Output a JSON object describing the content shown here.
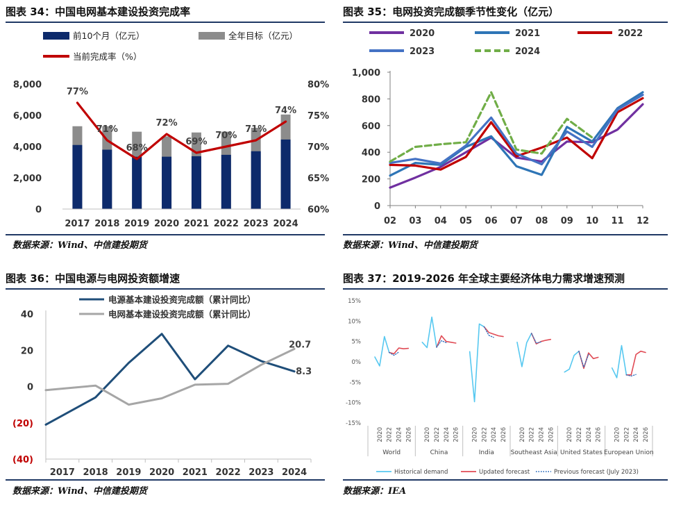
{
  "panels": {
    "p34": {
      "title": "图表 34：中国电网基本建设投资完成率",
      "source": "数据来源：Wind、中信建投期货"
    },
    "p35": {
      "title": "图表 35：电网投资完成额季节性变化（亿元）",
      "source": "数据来源：Wind、中信建投期货"
    },
    "p36": {
      "title": "图表 36：中国电源与电网投资额增速",
      "source": "数据来源：Wind、中信建投期货"
    },
    "p37": {
      "title": "图表 37：2019-2026 年全球主要经济体电力需求增速预测",
      "source": "数据来源：IEA"
    }
  },
  "chart_data": [
    {
      "id": "chart34",
      "type": "bar",
      "categories": [
        "2017",
        "2018",
        "2019",
        "2020",
        "2021",
        "2022",
        "2023",
        "2024"
      ],
      "series": [
        {
          "name": "前10个月（亿元）",
          "kind": "bar",
          "color": "#0d2a6b",
          "values": [
            4100,
            3800,
            3350,
            3350,
            3380,
            3470,
            3700,
            4450
          ]
        },
        {
          "name": "全年目标（亿元）",
          "kind": "bar",
          "color": "#8c8c8c",
          "values": [
            5300,
            5300,
            4950,
            4650,
            4900,
            4950,
            5200,
            6050
          ]
        },
        {
          "name": "当前完成率（%）",
          "kind": "line",
          "axis": "right",
          "color": "#c00000",
          "values": [
            77,
            71,
            68,
            72,
            69,
            70,
            71,
            74
          ]
        }
      ],
      "rate_labels": [
        "77%",
        "71%",
        "68%",
        "72%",
        "69%",
        "70%",
        "71%",
        "74%"
      ],
      "ylim": [
        0,
        8000
      ],
      "yticks": [
        "0",
        "2,000",
        "4,000",
        "6,000",
        "8,000"
      ],
      "y2lim": [
        60,
        80
      ],
      "y2ticks": [
        "60%",
        "65%",
        "70%",
        "75%",
        "80%"
      ],
      "legend": "top-left"
    },
    {
      "id": "chart35",
      "type": "line",
      "x": [
        "02",
        "03",
        "04",
        "05",
        "06",
        "07",
        "08",
        "09",
        "10",
        "11",
        "12"
      ],
      "series": [
        {
          "name": "2020",
          "color": "#7030a0",
          "dashed": false,
          "values": [
            135,
            210,
            290,
            400,
            510,
            360,
            330,
            480,
            475,
            570,
            760
          ]
        },
        {
          "name": "2021",
          "color": "#2e75b6",
          "dashed": false,
          "values": [
            225,
            320,
            305,
            440,
            520,
            295,
            230,
            590,
            480,
            730,
            850
          ]
        },
        {
          "name": "2022",
          "color": "#c00000",
          "dashed": false,
          "values": [
            305,
            300,
            270,
            365,
            625,
            370,
            435,
            510,
            355,
            700,
            805
          ]
        },
        {
          "name": "2023",
          "color": "#4472c4",
          "dashed": false,
          "values": [
            320,
            350,
            315,
            450,
            660,
            390,
            310,
            555,
            440,
            720,
            830
          ]
        },
        {
          "name": "2024",
          "color": "#70ad47",
          "dashed": true,
          "values": [
            330,
            440,
            460,
            475,
            850,
            420,
            390,
            650,
            510,
            null,
            null
          ]
        }
      ],
      "ylim": [
        0,
        1000
      ],
      "yticks": [
        "0",
        "200",
        "400",
        "600",
        "800",
        "1,000"
      ],
      "legend": "top"
    },
    {
      "id": "chart36",
      "type": "line",
      "x": [
        "2017",
        "2018",
        "2019",
        "2020",
        "2021",
        "2022",
        "2023",
        "2024"
      ],
      "series": [
        {
          "name": "电源基本建设投资完成额（累计同比）",
          "color": "#1f4e79",
          "values": [
            -21,
            -6,
            13,
            29,
            4,
            22.5,
            14,
            8.3
          ]
        },
        {
          "name": "电网基本建设投资完成额（累计同比）",
          "color": "#a6a6a6",
          "values": [
            -2,
            0.5,
            -10,
            -6.5,
            1,
            1.5,
            12,
            20.7
          ]
        }
      ],
      "end_labels": [
        "8.3",
        "20.7"
      ],
      "ylim": [
        -40,
        40
      ],
      "yticks": [
        "(40)",
        "(20)",
        "0",
        "20",
        "40"
      ],
      "legend": "top"
    },
    {
      "id": "chart37",
      "type": "line",
      "groups": [
        "World",
        "China",
        "India",
        "Southeast Asia",
        "United States",
        "European Union"
      ],
      "x_ticks": [
        "2020",
        "2022",
        "2024",
        "2026"
      ],
      "ylim": [
        -15,
        15
      ],
      "yticks": [
        "15%",
        "10%",
        "5%",
        "0%",
        "-5%",
        "-10%",
        "-15%"
      ],
      "group_data": [
        {
          "historical": [
            1.2,
            -1.0,
            6.2,
            2.3
          ],
          "updated": [
            2.3,
            2.0,
            3.4,
            3.2,
            3.3
          ],
          "previous": [
            2.3,
            1.6,
            2.4
          ]
        },
        {
          "historical": [
            4.8,
            3.5,
            11.0,
            3.6
          ],
          "updated": [
            3.6,
            6.4,
            5.0,
            4.8,
            4.6
          ],
          "previous": [
            3.6,
            5.2,
            4.7
          ]
        },
        {
          "historical": [
            2.5,
            -9.8,
            9.3,
            8.6
          ],
          "updated": [
            8.6,
            7.2,
            6.8,
            6.4,
            6.2
          ],
          "previous": [
            8.6,
            6.5,
            6.0
          ]
        },
        {
          "historical": [
            4.8,
            -1.2,
            4.7,
            7.0
          ],
          "updated": [
            7.0,
            4.4,
            5.0,
            5.3,
            5.5
          ],
          "previous": [
            7.0,
            4.6,
            4.9
          ]
        },
        {
          "historical": [
            -2.5,
            -1.8,
            1.6,
            2.6
          ],
          "updated": [
            2.6,
            -1.6,
            2.2,
            0.8,
            1.1
          ],
          "previous": [
            2.6,
            -1.3,
            1.8
          ]
        },
        {
          "historical": [
            -1.5,
            -3.9,
            4.0,
            -3.2
          ],
          "updated": [
            -3.2,
            -3.2,
            1.8,
            2.6,
            2.3
          ],
          "previous": [
            -3.2,
            -3.5,
            -3.1
          ]
        }
      ],
      "series": [
        {
          "name": "Historical demand",
          "color": "#56c8f0",
          "style": "solid"
        },
        {
          "name": "Updated forecast",
          "color": "#e04b55",
          "style": "solid"
        },
        {
          "name": "Previous forecast (July 2023)",
          "color": "#2f6fbf",
          "style": "dotted"
        }
      ],
      "legend": "bottom"
    }
  ]
}
